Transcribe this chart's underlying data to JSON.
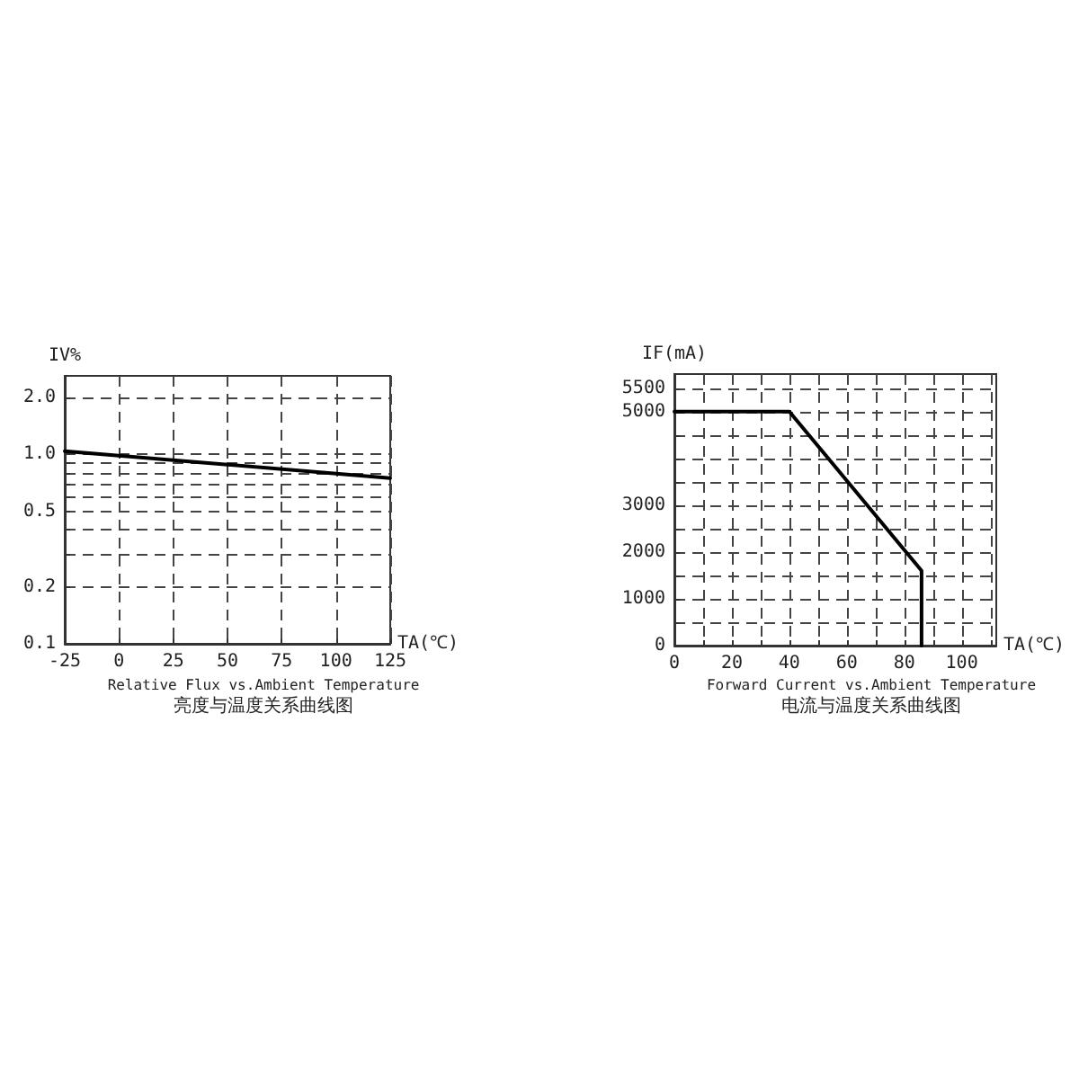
{
  "chart_data": [
    {
      "type": "line",
      "title": "Relative Flux vs.Ambient Temperature",
      "subtitle": "亮度与温度关系曲线图",
      "xlabel": "TA(℃)",
      "ylabel": "IV%",
      "x": [
        -25,
        125
      ],
      "series": [
        {
          "color": "#000000",
          "values": [
            1.04,
            0.75
          ]
        }
      ],
      "xlim": [
        -25,
        125
      ],
      "xticks": [
        -25,
        0,
        25,
        50,
        75,
        100,
        125
      ],
      "log": "y",
      "ylim": [
        0.1,
        2.6
      ],
      "yticks": [
        {
          "value": 0.1,
          "label": "0.1"
        },
        {
          "value": 0.2,
          "label": "0.2"
        },
        {
          "value": 0.3,
          "label": null
        },
        {
          "value": 0.4,
          "label": null
        },
        {
          "value": 0.5,
          "label": "0.5"
        },
        {
          "value": 0.6,
          "label": null
        },
        {
          "value": 0.7,
          "label": null
        },
        {
          "value": 0.8,
          "label": null
        },
        {
          "value": 0.9,
          "label": null
        },
        {
          "value": 1,
          "label": "1.0"
        },
        {
          "value": 2,
          "label": "2.0"
        }
      ],
      "grid": true,
      "marker": "none",
      "line_style": "solid"
    },
    {
      "type": "line",
      "title": "Forward Current vs.Ambient Temperature",
      "subtitle": "电流与温度关系曲线图",
      "xlabel": "TA(℃)",
      "ylabel": "IF(mA)",
      "x": [
        0,
        40,
        86,
        86
      ],
      "series": [
        {
          "color": "#000000",
          "values": [
            5000,
            5000,
            1600,
            0
          ]
        }
      ],
      "xlim": [
        0,
        112
      ],
      "xticks": [
        0,
        {
          "value": 10,
          "label": null
        },
        20,
        {
          "value": 30,
          "label": null
        },
        40,
        {
          "value": 50,
          "label": null
        },
        60,
        {
          "value": 70,
          "label": null
        },
        80,
        {
          "value": 90,
          "label": null
        },
        100,
        {
          "value": 110,
          "label": null
        }
      ],
      "ylim": [
        0,
        5800
      ],
      "yticks": [
        0,
        {
          "value": 500,
          "label": null
        },
        1000,
        {
          "value": 1500,
          "label": null
        },
        2000,
        {
          "value": 2500,
          "label": null
        },
        3000,
        {
          "value": 3500,
          "label": null
        },
        {
          "value": 4000,
          "label": null
        },
        {
          "value": 4500,
          "label": null
        },
        5000,
        5500
      ],
      "grid": true,
      "marker": "none",
      "line_style": "solid"
    }
  ]
}
